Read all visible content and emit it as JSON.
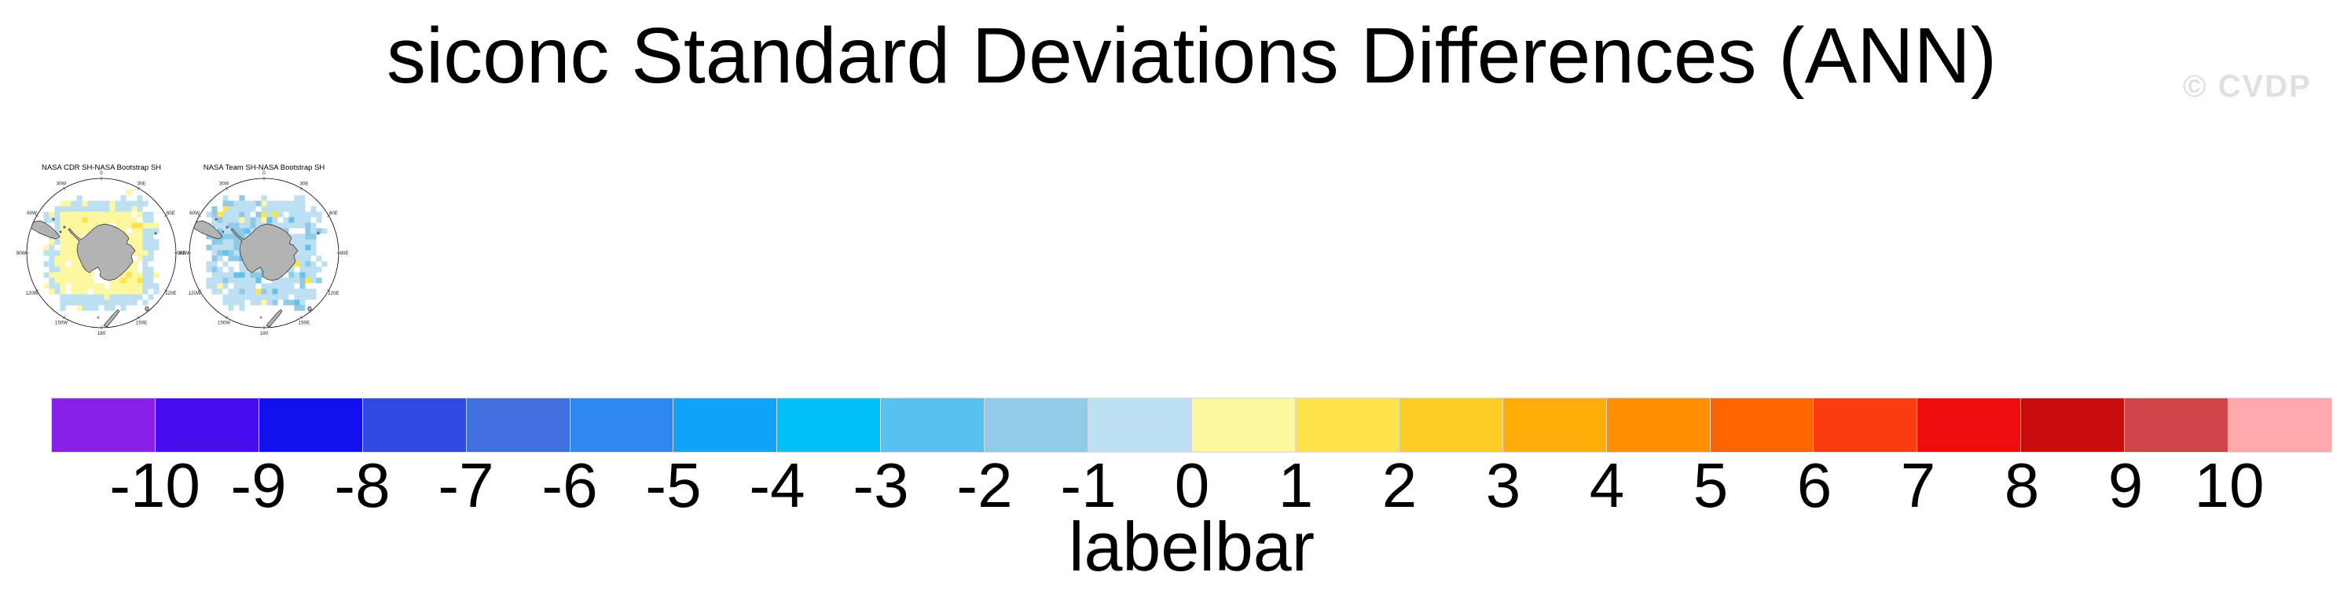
{
  "page": {
    "title": "siconc Standard Deviations Differences (ANN)",
    "watermark": "© CVDP",
    "background": "#FFFFFF"
  },
  "panels": [
    {
      "title": "NASA CDR SH-NASA Bootstrap SH",
      "summary": "pale-yellow (0 to 1) pack-ice core around Antarctica with a pale-blue (-1 to 0) outer fringe and white gaps"
    },
    {
      "title": "NASA Team SH-NASA Bootstrap SH",
      "summary": "pale-blue (-1 to 0) field with medium-blue (-2 to -1) streaks and scattered yellow (1 to 3) cells"
    }
  ],
  "map": {
    "lon_labels": [
      "0",
      "30E",
      "60E",
      "90E",
      "120E",
      "150E",
      "180",
      "150W",
      "120W",
      "90W",
      "60W",
      "30W"
    ],
    "land_color": "#B3B3B3",
    "coast_color": "#2A2A2A",
    "circle_color": "#000000",
    "ice_palette": {
      "pale_yellow": "#FDF7A0",
      "yellow": "#FFE34A",
      "gold": "#FFCE26",
      "pale_blue": "#BCE0F2",
      "medium_blue": "#8FC9E8",
      "sky_blue": "#63C0EC",
      "gap": "#FFFFFF"
    }
  },
  "labelbar": {
    "label": "labelbar",
    "ticks": [
      "-10",
      "-9",
      "-8",
      "-7",
      "-6",
      "-5",
      "-4",
      "-3",
      "-2",
      "-1",
      "0",
      "1",
      "2",
      "3",
      "4",
      "5",
      "6",
      "7",
      "8",
      "9",
      "10"
    ],
    "colors": [
      "#8920EA",
      "#470DEE",
      "#1310F0",
      "#3349E4",
      "#4070E0",
      "#2F88F0",
      "#0FA4FA",
      "#00C0F8",
      "#58C2EE",
      "#92CBE8",
      "#BCE0F2",
      "#FDF7A0",
      "#FFE34A",
      "#FFCE26",
      "#FFAD08",
      "#FF8F00",
      "#FF6400",
      "#FA3C10",
      "#EE0C0C",
      "#C80C0C",
      "#CE4448",
      "#FFA9AC"
    ]
  },
  "chart_data": {
    "type": "heatmap",
    "title": "siconc Standard Deviations Differences (ANN)",
    "variable": "siconc",
    "season": "ANN",
    "panels": [
      {
        "title": "NASA CDR SH-NASA Bootstrap SH",
        "projection": "south polar stereographic",
        "typical_values": {
          "inner_pack": "0 to 1",
          "outer_fringe": "-1 to 0"
        }
      },
      {
        "title": "NASA Team SH-NASA Bootstrap SH",
        "projection": "south polar stereographic",
        "typical_values": {
          "most_of_field": "-1 to 0",
          "patches": "-2 to -1",
          "scattered_cells": "1 to 3"
        }
      }
    ],
    "labelbar": {
      "label": "labelbar",
      "tick_values": [
        -10,
        -9,
        -8,
        -7,
        -6,
        -5,
        -4,
        -3,
        -2,
        -1,
        0,
        1,
        2,
        3,
        4,
        5,
        6,
        7,
        8,
        9,
        10
      ],
      "box_count": 22,
      "box_colors": [
        "#8920EA",
        "#470DEE",
        "#1310F0",
        "#3349E4",
        "#4070E0",
        "#2F88F0",
        "#0FA4FA",
        "#00C0F8",
        "#58C2EE",
        "#92CBE8",
        "#BCE0F2",
        "#FDF7A0",
        "#FFE34A",
        "#FFCE26",
        "#FFAD08",
        "#FF8F00",
        "#FF6400",
        "#FA3C10",
        "#EE0C0C",
        "#C80C0C",
        "#CE4448",
        "#FFA9AC"
      ]
    }
  }
}
